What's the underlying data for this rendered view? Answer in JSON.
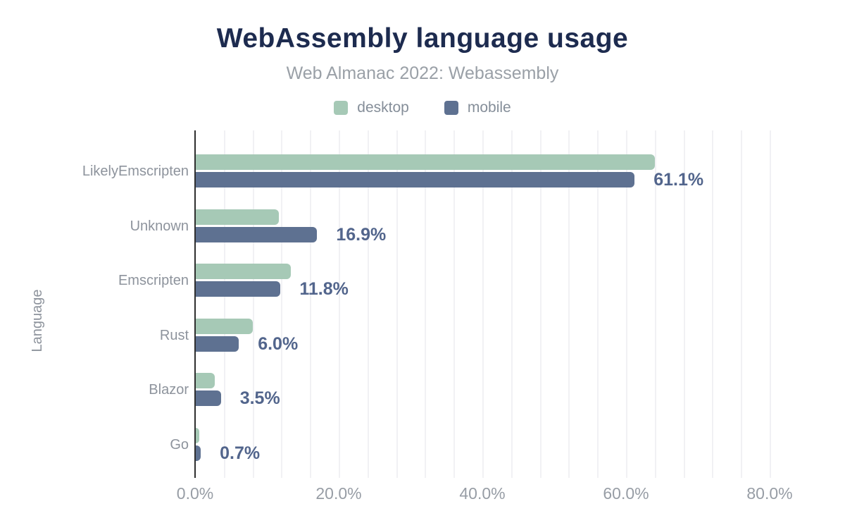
{
  "chart_data": {
    "type": "bar",
    "orientation": "horizontal",
    "title": "WebAssembly language usage",
    "subtitle": "Web Almanac 2022: Webassembly",
    "xlabel": "",
    "ylabel": "Language",
    "categories": [
      "LikelyEmscripten",
      "Unknown",
      "Emscripten",
      "Rust",
      "Blazor",
      "Go"
    ],
    "series": [
      {
        "name": "desktop",
        "color": "#a6c9b6",
        "values": [
          63.9,
          11.6,
          13.2,
          7.9,
          2.6,
          0.5
        ]
      },
      {
        "name": "mobile",
        "color": "#5e7191",
        "values": [
          61.1,
          16.9,
          11.8,
          6.0,
          3.5,
          0.7
        ]
      }
    ],
    "data_labels": {
      "labeled_series": "mobile",
      "values": [
        "61.1%",
        "16.9%",
        "11.8%",
        "6.0%",
        "3.5%",
        "0.7%"
      ],
      "color": "#52658c"
    },
    "x_ticks": [
      "0.0%",
      "20.0%",
      "40.0%",
      "60.0%",
      "80.0%"
    ],
    "xlim": [
      0,
      80
    ],
    "minor_grid_step": 4,
    "grid": "vertical-minor",
    "legend_position": "top",
    "colors": {
      "title": "#1d2b4f",
      "subtitle": "#9aa0a7",
      "axis_labels": "#8d939c",
      "tick_labels": "#979da5",
      "gridline": "#f1f1f4",
      "axis_line": "#2f2f2f",
      "background": "#ffffff"
    }
  }
}
